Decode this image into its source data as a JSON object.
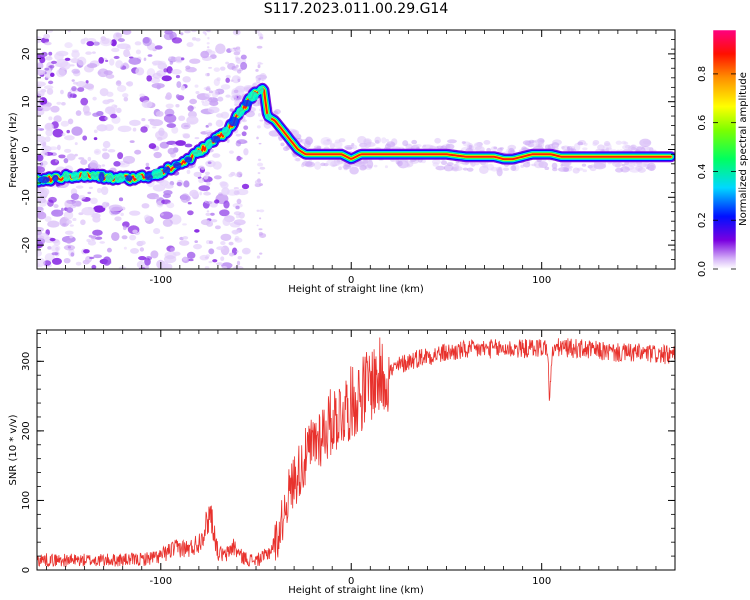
{
  "title": "S117.2023.011.00.29.G14",
  "chart_data": [
    {
      "type": "heatmap",
      "name": "spectrogram",
      "xlabel": "Height of straight line (km)",
      "ylabel": "Frequency (Hz)",
      "xlim": [
        -165,
        170
      ],
      "ylim": [
        -25,
        25
      ],
      "x_ticks": [
        -100,
        0,
        100
      ],
      "y_ticks": [
        -20,
        -10,
        0,
        10,
        20
      ],
      "ridge": {
        "x": [
          -165,
          -155,
          -145,
          -135,
          -125,
          -115,
          -105,
          -95,
          -85,
          -75,
          -65,
          -58,
          -52,
          -46,
          -44,
          -40,
          -36,
          -32,
          -28,
          -24,
          -20,
          -15,
          -10,
          -5,
          0,
          5,
          10,
          20,
          30,
          40,
          50,
          60,
          70,
          75,
          80,
          85,
          90,
          95,
          100,
          105,
          110,
          115,
          120,
          130,
          140,
          150,
          160,
          168
        ],
        "y": [
          -6.5,
          -6,
          -5.5,
          -5.5,
          -6,
          -6,
          -5.5,
          -4,
          -2,
          1,
          4,
          8,
          11,
          13,
          7,
          6,
          4,
          2,
          0,
          -1,
          -1,
          -1,
          -1,
          -1,
          -2,
          -1,
          -1,
          -1,
          -1,
          -1,
          -1,
          -1.5,
          -1.5,
          -1.5,
          -2,
          -2,
          -1.5,
          -1,
          -1,
          -1,
          -1.5,
          -1.5,
          -1.5,
          -1.5,
          -1.5,
          -1.5,
          -1.5,
          -1.5
        ]
      },
      "colorbar": {
        "label": "Normalized spectral amplitude",
        "ticks": [
          "0.0",
          "0.2",
          "0.4",
          "0.6",
          "0.8"
        ],
        "tick_values": [
          0,
          0.2,
          0.4,
          0.6,
          0.8
        ],
        "range": [
          0,
          0.98
        ]
      }
    },
    {
      "type": "line",
      "name": "snr",
      "xlabel": "Height of straight line (km)",
      "ylabel": "SNR (10 * v/v)",
      "xlim": [
        -165,
        170
      ],
      "ylim": [
        0,
        345
      ],
      "x_ticks": [
        -100,
        0,
        100
      ],
      "y_ticks": [
        0,
        100,
        200,
        300
      ],
      "color": "#e8322d",
      "envelope": {
        "x": [
          -165,
          -150,
          -130,
          -110,
          -100,
          -95,
          -90,
          -85,
          -80,
          -76,
          -74,
          -72,
          -70,
          -66,
          -62,
          -58,
          -54,
          -50,
          -46,
          -42,
          -38,
          -34,
          -30,
          -26,
          -22,
          -18,
          -14,
          -10,
          -6,
          -2,
          2,
          6,
          10,
          14,
          18,
          22,
          26,
          30,
          35,
          40,
          45,
          50,
          60,
          70,
          80,
          90,
          100,
          103,
          104,
          106,
          110,
          120,
          130,
          140,
          150,
          160,
          170
        ],
        "y": [
          15,
          14,
          14,
          15,
          20,
          28,
          32,
          30,
          40,
          65,
          85,
          55,
          25,
          20,
          35,
          20,
          15,
          14,
          18,
          30,
          50,
          100,
          130,
          150,
          170,
          190,
          200,
          215,
          225,
          235,
          245,
          255,
          270,
          275,
          280,
          288,
          295,
          300,
          305,
          308,
          310,
          312,
          316,
          318,
          318,
          318,
          320,
          320,
          250,
          318,
          320,
          318,
          315,
          312,
          312,
          310,
          308
        ]
      }
    }
  ]
}
